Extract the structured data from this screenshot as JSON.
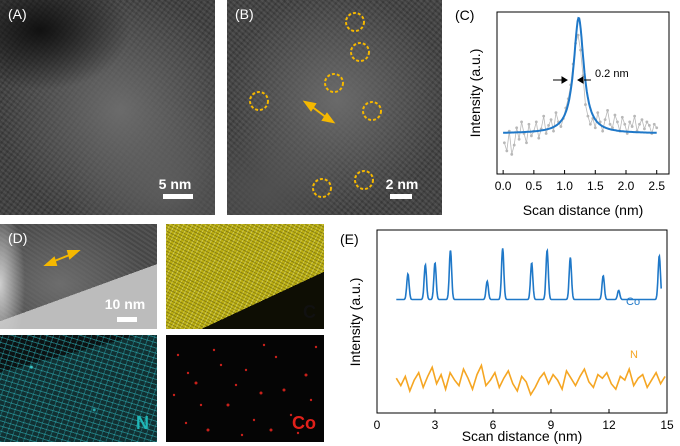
{
  "panels": {
    "a": {
      "label": "(A)",
      "scale_label": "5 nm"
    },
    "b": {
      "label": "(B)",
      "scale_label": "2 nm"
    },
    "d": {
      "label": "(D)",
      "scale_label": "10 nm"
    },
    "map_c": {
      "element": "C",
      "color": "#111111"
    },
    "map_n": {
      "element": "N",
      "color": "#1fb7b7"
    },
    "map_co": {
      "element": "Co",
      "color": "#e0201a"
    }
  },
  "colors": {
    "highlight": "#f5b800",
    "line_profile": "#1f78c8",
    "n_profile": "#f5a623",
    "points": "#b8b8b8"
  },
  "chart_data": [
    {
      "panel_label": "(C)",
      "type": "line",
      "xlabel": "Scan distance (nm)",
      "ylabel": "Intensity (a.u.)",
      "xlim": [
        -0.1,
        2.7
      ],
      "xticks": [
        "0.0",
        "0.5",
        "1.0",
        "1.5",
        "2.0",
        "2.5"
      ],
      "annotation": "0.2 nm",
      "fit": {
        "baseline": 0.2,
        "peak_x": 1.23,
        "peak_height": 1.0,
        "fwhm": 0.2
      },
      "points_x": [
        0.02,
        0.06,
        0.1,
        0.14,
        0.18,
        0.22,
        0.26,
        0.3,
        0.34,
        0.38,
        0.42,
        0.46,
        0.5,
        0.54,
        0.58,
        0.62,
        0.66,
        0.7,
        0.74,
        0.78,
        0.82,
        0.86,
        0.9,
        0.94,
        0.98,
        1.02,
        1.06,
        1.1,
        1.14,
        1.18,
        1.22,
        1.26,
        1.3,
        1.34,
        1.38,
        1.42,
        1.46,
        1.5,
        1.54,
        1.58,
        1.62,
        1.66,
        1.7,
        1.74,
        1.78,
        1.82,
        1.86,
        1.9,
        1.94,
        1.98,
        2.02,
        2.06,
        2.1,
        2.14,
        2.18,
        2.22,
        2.26,
        2.3,
        2.34,
        2.38,
        2.42,
        2.46,
        2.5
      ],
      "points_y": [
        0.12,
        0.05,
        0.22,
        0.02,
        0.1,
        0.25,
        0.15,
        0.3,
        0.2,
        0.12,
        0.28,
        0.18,
        0.22,
        0.3,
        0.16,
        0.24,
        0.35,
        0.2,
        0.27,
        0.32,
        0.22,
        0.38,
        0.3,
        0.26,
        0.33,
        0.42,
        0.5,
        0.62,
        0.8,
        0.98,
        1.05,
        0.92,
        0.7,
        0.45,
        0.35,
        0.28,
        0.33,
        0.25,
        0.38,
        0.3,
        0.22,
        0.32,
        0.4,
        0.28,
        0.25,
        0.36,
        0.3,
        0.22,
        0.34,
        0.28,
        0.2,
        0.3,
        0.26,
        0.35,
        0.22,
        0.28,
        0.32,
        0.24,
        0.3,
        0.27,
        0.2,
        0.28,
        0.25
      ]
    },
    {
      "panel_label": "(E)",
      "type": "line",
      "xlabel": "Scan distance (nm)",
      "ylabel": "Intensity (a.u.)",
      "xlim": [
        0,
        15
      ],
      "xticks": [
        "0",
        "3",
        "6",
        "9",
        "12",
        "15"
      ],
      "series": [
        {
          "name": "Co",
          "baseline": 0.62,
          "peaks_x": [
            1.6,
            2.5,
            3.0,
            3.8,
            5.7,
            6.5,
            8.0,
            8.8,
            10.0,
            11.7,
            12.5,
            14.6
          ],
          "peaks_h": [
            0.14,
            0.19,
            0.2,
            0.27,
            0.1,
            0.28,
            0.2,
            0.27,
            0.23,
            0.13,
            0.05,
            0.24
          ]
        },
        {
          "name": "N",
          "baseline": 0.17,
          "values": [
            0.19,
            0.15,
            0.2,
            0.12,
            0.18,
            0.22,
            0.14,
            0.2,
            0.25,
            0.16,
            0.21,
            0.13,
            0.22,
            0.18,
            0.15,
            0.24,
            0.19,
            0.13,
            0.21,
            0.26,
            0.15,
            0.18,
            0.22,
            0.14,
            0.19,
            0.23,
            0.16,
            0.12,
            0.2,
            0.17,
            0.1,
            0.14,
            0.19,
            0.22,
            0.16,
            0.21,
            0.18,
            0.13,
            0.23,
            0.19,
            0.15,
            0.2,
            0.24,
            0.17,
            0.14,
            0.21,
            0.19,
            0.22,
            0.16,
            0.13,
            0.2,
            0.18,
            0.24,
            0.15,
            0.19,
            0.21,
            0.14,
            0.18,
            0.22,
            0.16,
            0.2
          ]
        }
      ]
    }
  ]
}
